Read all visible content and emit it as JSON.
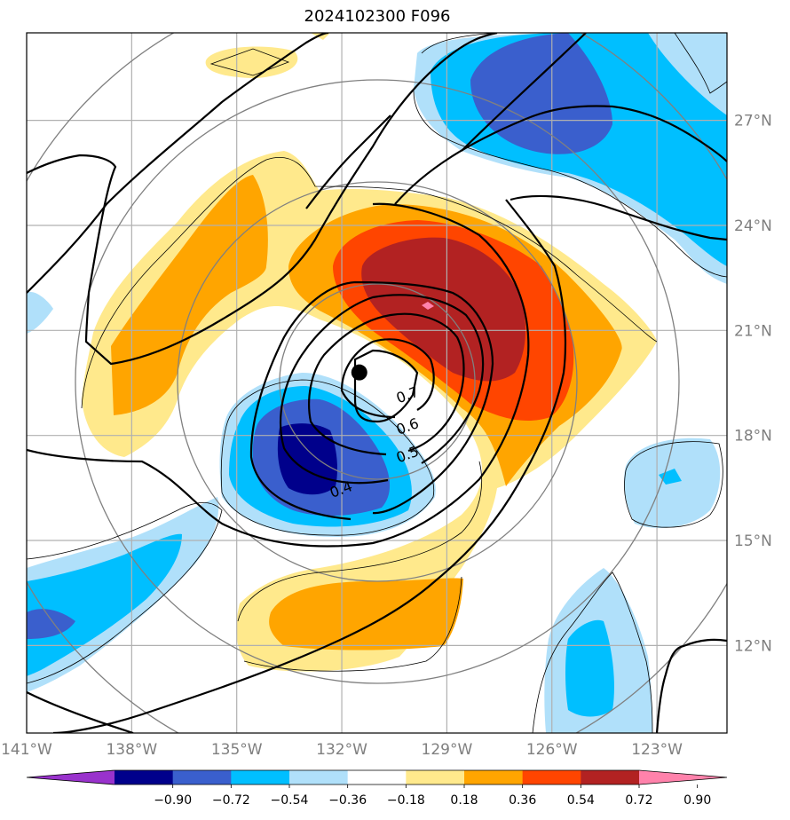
{
  "title": "2024102300 F096",
  "map": {
    "lon_range": [
      -141,
      -121
    ],
    "lat_range": [
      9.5,
      29.5
    ],
    "lon_ticks": [
      {
        "value": -141,
        "label": "141°W"
      },
      {
        "value": -138,
        "label": "138°W"
      },
      {
        "value": -135,
        "label": "135°W"
      },
      {
        "value": -132,
        "label": "132°W"
      },
      {
        "value": -129,
        "label": "129°W"
      },
      {
        "value": -126,
        "label": "126°W"
      },
      {
        "value": -123,
        "label": "123°W"
      }
    ],
    "lat_ticks": [
      {
        "value": 12,
        "label": "12°N"
      },
      {
        "value": 15,
        "label": "15°N"
      },
      {
        "value": 18,
        "label": "18°N"
      },
      {
        "value": 21,
        "label": "21°N"
      },
      {
        "value": 24,
        "label": "24°N"
      },
      {
        "value": 27,
        "label": "27°N"
      }
    ],
    "grid": true,
    "storm_center": {
      "lon": -131.5,
      "lat": 19.8
    },
    "contour_labels": [
      {
        "text": "0.7",
        "lon": -130.1,
        "lat": 19.1
      },
      {
        "text": "0.6",
        "lon": -130.1,
        "lat": 18.2
      },
      {
        "text": "0.5",
        "lon": -130.1,
        "lat": 17.4
      },
      {
        "text": "0.4",
        "lon": -132.0,
        "lat": 16.4
      }
    ]
  },
  "colorbar": {
    "colors": [
      "#9932cc",
      "#00008b",
      "#3a5fcd",
      "#00bfff",
      "#b0e0fa",
      "#ffffff",
      "#ffe98c",
      "#ffa500",
      "#ff4500",
      "#b22222",
      "#ff82ab"
    ],
    "tick_labels": [
      "−0.90",
      "−0.72",
      "−0.54",
      "−0.36",
      "−0.18",
      "0.18",
      "0.36",
      "0.54",
      "0.72",
      "0.90"
    ]
  },
  "colors": {
    "pos1": "#ffe98c",
    "pos2": "#ffa500",
    "pos3": "#ff4500",
    "pos4": "#b22222",
    "pos5": "#ff82ab",
    "neg1": "#b0e0fa",
    "neg2": "#00bfff",
    "neg3": "#3a5fcd",
    "neg4": "#00008b",
    "grid": "#b0b0b0",
    "circle": "#808080"
  }
}
